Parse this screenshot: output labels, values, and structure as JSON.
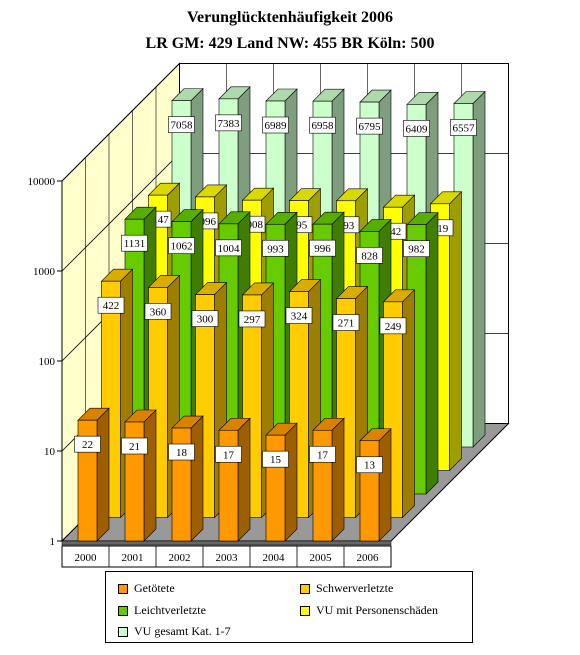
{
  "title": "Verunglücktenhäufigkeit 2006",
  "subtitle": "LR GM: 429   Land NW: 455   BR Köln: 500",
  "colors": {
    "getoetete": "#ff9900",
    "schwerverletzte": "#ffcc00",
    "leichtverletzte": "#66cc00",
    "vu_personenschaeden": "#ffff00",
    "vu_gesamt": "#ccffcc"
  },
  "chart_data": {
    "type": "bar",
    "categories": [
      "2000",
      "2001",
      "2002",
      "2003",
      "2004",
      "2005",
      "2006"
    ],
    "yscale": "log",
    "ylim": [
      1,
      10000
    ],
    "yticks": [
      "1",
      "10",
      "100",
      "1000",
      "10000"
    ],
    "grid": true,
    "legend_position": "bottom",
    "series": [
      {
        "name": "Getötete",
        "values": [
          22,
          21,
          18,
          17,
          15,
          17,
          13
        ]
      },
      {
        "name": "Schwerverletzte",
        "values": [
          422,
          360,
          300,
          297,
          324,
          271,
          249
        ]
      },
      {
        "name": "Leichtverletzte",
        "values": [
          1131,
          1062,
          1004,
          993,
          996,
          828,
          982
        ]
      },
      {
        "name": "VU mit Personenschäden",
        "values": [
          1147,
          1096,
          1008,
          995,
          993,
          842,
          919
        ]
      },
      {
        "name": "VU gesamt Kat. 1-7",
        "values": [
          7058,
          7383,
          6989,
          6958,
          6795,
          6409,
          6557
        ]
      }
    ]
  },
  "legend": [
    {
      "label": "Getötete",
      "color": "#ff9900"
    },
    {
      "label": "Schwerverletzte",
      "color": "#ffcc00"
    },
    {
      "label": "Leichtverletzte",
      "color": "#66cc00"
    },
    {
      "label": "VU mit Personenschäden",
      "color": "#ffff00"
    },
    {
      "label": "VU gesamt Kat. 1-7",
      "color": "#ccffcc"
    }
  ]
}
